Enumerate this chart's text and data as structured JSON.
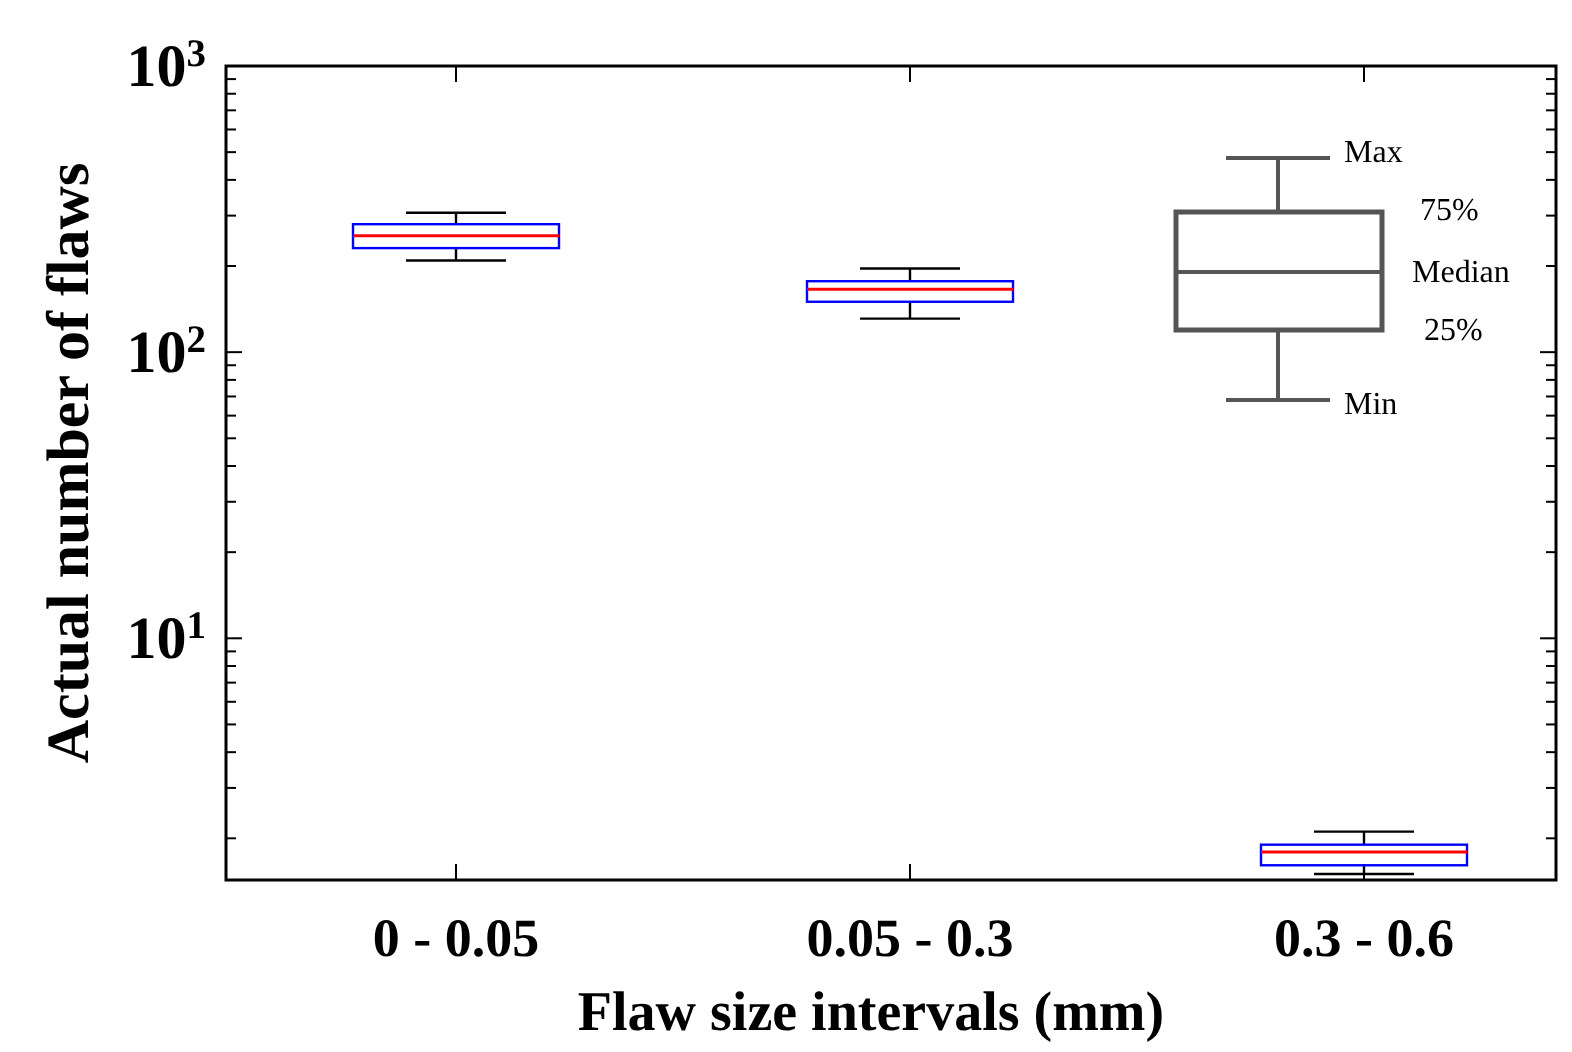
{
  "chart_data": {
    "type": "box",
    "xlabel": "Flaw size intervals (mm)",
    "ylabel": "Actual number of flaws",
    "categories": [
      "0 - 0.05",
      "0.05 - 0.3",
      "0.3 - 0.6"
    ],
    "series": [
      {
        "color": "#0000ff",
        "boxes": [
          {
            "low": 209,
            "q1": 231,
            "median": 255,
            "q3": 280,
            "high": 307
          },
          {
            "low": 131,
            "q1": 150,
            "median": 166,
            "q3": 177,
            "high": 196
          },
          {
            "low": 1.5,
            "q1": 1.61,
            "median": 1.79,
            "q3": 1.9,
            "high": 2.11
          }
        ]
      }
    ],
    "log": true,
    "ylim": [
      1.43,
      1000
    ],
    "yticks": [
      {
        "value": 2,
        "label": null
      },
      {
        "value": 3,
        "label": null
      },
      {
        "value": 4,
        "label": null
      },
      {
        "value": 5,
        "label": null
      },
      {
        "value": 6,
        "label": null
      },
      {
        "value": 7,
        "label": null
      },
      {
        "value": 8,
        "label": null
      },
      {
        "value": 9,
        "label": null
      },
      {
        "value": 10,
        "label": "10$^{1}$"
      },
      {
        "value": 20,
        "label": null
      },
      {
        "value": 30,
        "label": null
      },
      {
        "value": 40,
        "label": null
      },
      {
        "value": 50,
        "label": null
      },
      {
        "value": 60,
        "label": null
      },
      {
        "value": 70,
        "label": null
      },
      {
        "value": 80,
        "label": null
      },
      {
        "value": 90,
        "label": null
      },
      {
        "value": 100,
        "label": "10$^{2}$"
      },
      {
        "value": 200,
        "label": null
      },
      {
        "value": 300,
        "label": null
      },
      {
        "value": 400,
        "label": null
      },
      {
        "value": 500,
        "label": null
      },
      {
        "value": 600,
        "label": null
      },
      {
        "value": 700,
        "label": null
      },
      {
        "value": 800,
        "label": null
      },
      {
        "value": 900,
        "label": null
      },
      {
        "value": 1000,
        "label": "10$^{3}$"
      }
    ],
    "annotations": [
      "Max",
      "75%",
      "Median",
      "25%",
      "Min"
    ],
    "grid": false
  }
}
